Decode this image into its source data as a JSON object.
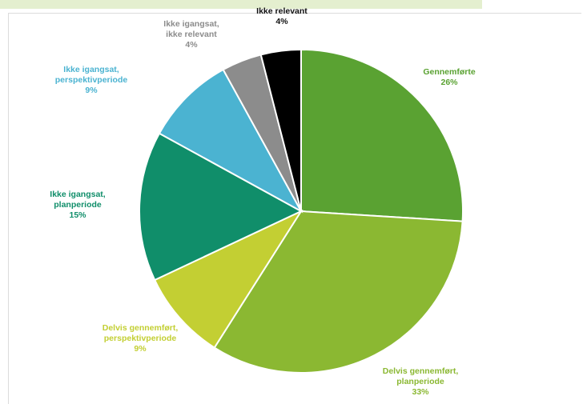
{
  "chart_data": {
    "type": "pie",
    "title": "",
    "start_angle_deg": 0,
    "direction": "clockwise",
    "slices": [
      {
        "label_lines": [
          "Gennemførte"
        ],
        "value_label": "26%",
        "value": 26,
        "color": "#5aa232",
        "label_color": "#5aa232"
      },
      {
        "label_lines": [
          "Delvis gennemført,",
          "planperiode"
        ],
        "value_label": "33%",
        "value": 33,
        "color": "#8bb832",
        "label_color": "#8bb832"
      },
      {
        "label_lines": [
          "Delvis gennemført,",
          "perspektivperiode"
        ],
        "value_label": "9%",
        "value": 9,
        "color": "#c3cf33",
        "label_color": "#c3cf33"
      },
      {
        "label_lines": [
          "Ikke igangsat,",
          "planperiode"
        ],
        "value_label": "15%",
        "value": 15,
        "color": "#108e6a",
        "label_color": "#108e6a"
      },
      {
        "label_lines": [
          "Ikke igangsat,",
          "perspektivperiode"
        ],
        "value_label": "9%",
        "value": 9,
        "color": "#4bb3d1",
        "label_color": "#4bb3d1"
      },
      {
        "label_lines": [
          "Ikke igangsat,",
          "ikke relevant"
        ],
        "value_label": "4%",
        "value": 4,
        "color": "#8c8c8c",
        "label_color": "#8c8c8c"
      },
      {
        "label_lines": [
          "Ikke relevant"
        ],
        "value_label": "4%",
        "value": 4,
        "color": "#000000",
        "label_color": "#111111"
      }
    ]
  }
}
